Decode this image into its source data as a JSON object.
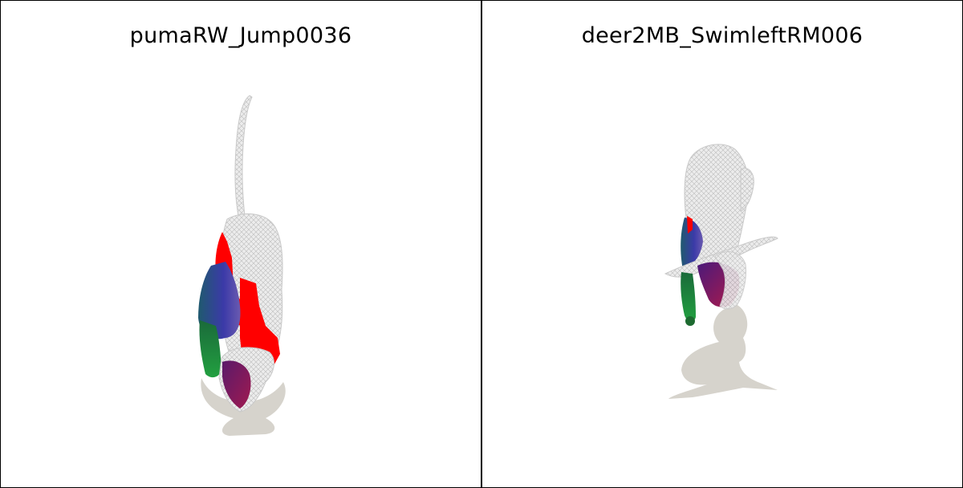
{
  "panels": [
    {
      "title": "pumaRW_Jump0036"
    },
    {
      "title": "deer2MB_SwimleftRM006"
    }
  ],
  "colors": {
    "border": "#000000",
    "background": "#ffffff",
    "mesh_gray": "#e6e6e6",
    "mesh_line": "#b8b8b8",
    "shadow": "#d6d3cc",
    "segment_red": "#ff0000",
    "segment_blue": "#3c3aa0",
    "segment_green": "#1f8a3a",
    "segment_purple": "#7a1a7a"
  }
}
